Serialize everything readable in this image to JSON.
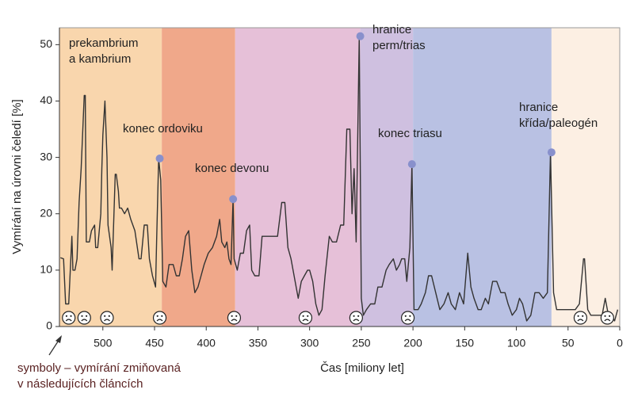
{
  "chart_data": {
    "type": "line",
    "xlabel": "Čas [miliony let]",
    "ylabel": "Vymírání na úrovni čeledí [%]",
    "xlim": [
      542,
      0
    ],
    "ylim": [
      0,
      53
    ],
    "xticks": [
      500,
      450,
      400,
      350,
      300,
      250,
      200,
      150,
      100,
      50,
      0
    ],
    "yticks": [
      0,
      10,
      20,
      30,
      40,
      50
    ],
    "periods": [
      {
        "start": 542,
        "end": 443,
        "color": "#f9d6ad"
      },
      {
        "start": 443,
        "end": 372,
        "color": "#f0a88a"
      },
      {
        "start": 372,
        "end": 251,
        "color": "#e6c0d8"
      },
      {
        "start": 251,
        "end": 200,
        "color": "#cfc0e0"
      },
      {
        "start": 200,
        "end": 66,
        "color": "#b9c1e3"
      },
      {
        "start": 66,
        "end": 0,
        "color": "#fcefe3"
      }
    ],
    "x": [
      541,
      538,
      536,
      533,
      530,
      529,
      527,
      525,
      523,
      521,
      518,
      517,
      516,
      513,
      511,
      508,
      507,
      505,
      502,
      501,
      500,
      498,
      496,
      495,
      492,
      491,
      488,
      487,
      485,
      484,
      482,
      479,
      476,
      473,
      469,
      465,
      463,
      460,
      457,
      455,
      452,
      449,
      448,
      446,
      444,
      442,
      439,
      436,
      432,
      429,
      426,
      423,
      420,
      417,
      414,
      411,
      408,
      405,
      402,
      398,
      394,
      390,
      387,
      385,
      382,
      380,
      378,
      376,
      374,
      373,
      370,
      367,
      364,
      361,
      358,
      356,
      353,
      349,
      346,
      343,
      339,
      335,
      331,
      327,
      324,
      321,
      318,
      314,
      311,
      308,
      305,
      302,
      300,
      297,
      294,
      291,
      288,
      285,
      281,
      278,
      274,
      270,
      267,
      264,
      261,
      259,
      257,
      255,
      252,
      250,
      248,
      245,
      241,
      237,
      234,
      230,
      226,
      223,
      219,
      216,
      213,
      211,
      208,
      206,
      203,
      201,
      199,
      195,
      192,
      188,
      185,
      182,
      178,
      174,
      170,
      166,
      163,
      159,
      155,
      151,
      147,
      144,
      141,
      137,
      134,
      130,
      127,
      123,
      119,
      115,
      111,
      108,
      104,
      100,
      97,
      94,
      90,
      86,
      82,
      78,
      74,
      70,
      67,
      64,
      61,
      57,
      52,
      48,
      43,
      39,
      35,
      34,
      31,
      28,
      25,
      21,
      17,
      14,
      11,
      8,
      5,
      2
    ],
    "series": [
      {
        "color": "#333333",
        "values": [
          12.2,
          12,
          4,
          4,
          16,
          10,
          10,
          12,
          22,
          28,
          41,
          41,
          15,
          15,
          17,
          18,
          14,
          14,
          20,
          28,
          34,
          40,
          30,
          18,
          14,
          10,
          27,
          27,
          24,
          21,
          21,
          20,
          21,
          19,
          17,
          12,
          12,
          18,
          18,
          12,
          9,
          7,
          15,
          29.8,
          26,
          8,
          7,
          11,
          11,
          9,
          9,
          12,
          16,
          17,
          10,
          6,
          7,
          9,
          11,
          13,
          14,
          16,
          19,
          15,
          14,
          15,
          12,
          11,
          22.6,
          12,
          10,
          13,
          13,
          17,
          18,
          10,
          9,
          9,
          16,
          16,
          16,
          16,
          16,
          22,
          22,
          14,
          12,
          8,
          5,
          8,
          9,
          10,
          10,
          8,
          4,
          2,
          3,
          9,
          16,
          15,
          15,
          18,
          18,
          35,
          35,
          20,
          28,
          15,
          51.5,
          5,
          2,
          3,
          4,
          4,
          7,
          7,
          10,
          11,
          12,
          10,
          11,
          12,
          12,
          8,
          14,
          28.8,
          3,
          3,
          4,
          6,
          9,
          9,
          6,
          3,
          4,
          6,
          4,
          3,
          6,
          4,
          13,
          7,
          5,
          3,
          3,
          5,
          4,
          8,
          8,
          6,
          6,
          4,
          2,
          3,
          5,
          4,
          1,
          2,
          6,
          6,
          5,
          6,
          30.9,
          6,
          3,
          3,
          3,
          3,
          3,
          4,
          12,
          12,
          3,
          2,
          2,
          2,
          2,
          5,
          2,
          2,
          1,
          3
        ]
      }
    ],
    "points": [
      {
        "x": 445,
        "y": 29.8
      },
      {
        "x": 374,
        "y": 22.6
      },
      {
        "x": 251,
        "y": 51.5
      },
      {
        "x": 201,
        "y": 28.8
      },
      {
        "x": 66,
        "y": 30.9
      }
    ],
    "point_color": "#8890cc",
    "annotations": [
      {
        "text": [
          "prekambrium",
          "a kambrium"
        ]
      },
      {
        "text": [
          "konec ordoviku"
        ]
      },
      {
        "text": [
          "konec devonu"
        ]
      },
      {
        "text": [
          "hranice",
          "perm/trias"
        ]
      },
      {
        "text": [
          "konec triasu"
        ]
      },
      {
        "text": [
          "hranice",
          "křída/paleogén"
        ]
      }
    ],
    "symbols": [
      533,
      518,
      496,
      445,
      373,
      304,
      255,
      205,
      38,
      12
    ],
    "caption": [
      "symboly – vymírání zmiňovaná",
      "v následujících článcích"
    ]
  }
}
